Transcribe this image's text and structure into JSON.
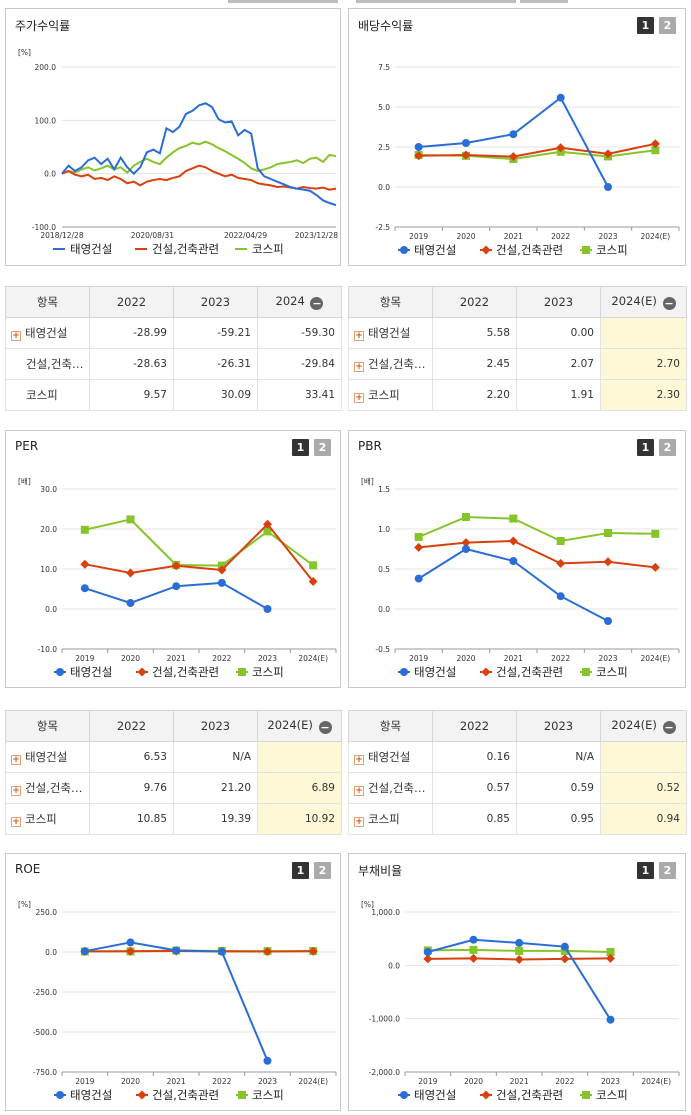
{
  "colors": {
    "series1": "#2b6dd6",
    "series2": "#d8400e",
    "series3": "#86c42b"
  },
  "stock": {
    "title": "주가수익률",
    "unit": "[%]",
    "y_ticks": [
      "200.0",
      "100.0",
      "0.0",
      "-100.0"
    ],
    "x_ticks": [
      "2018/12/28",
      "2020/08/31",
      "2022/04/29",
      "2023/12/28"
    ],
    "legend": [
      "태영건설",
      "건설,건축관련",
      "코스피"
    ],
    "chart_data": {
      "type": "line",
      "ylim": [
        -100,
        200
      ],
      "series": [
        {
          "name": "태영건설",
          "values": [
            0,
            15,
            5,
            12,
            25,
            30,
            18,
            28,
            8,
            30,
            12,
            0,
            12,
            40,
            45,
            38,
            85,
            78,
            88,
            112,
            118,
            128,
            132,
            125,
            102,
            96,
            98,
            72,
            82,
            75,
            10,
            -5,
            -10,
            -15,
            -20,
            -25,
            -28,
            -30,
            -32,
            -40,
            -50,
            -55,
            -59
          ]
        },
        {
          "name": "건설,건축관련",
          "values": [
            0,
            5,
            -2,
            -5,
            -2,
            -10,
            -8,
            -12,
            -5,
            -10,
            -18,
            -15,
            -22,
            -15,
            -12,
            -10,
            -12,
            -8,
            -5,
            5,
            10,
            15,
            12,
            5,
            0,
            -5,
            -2,
            -8,
            -10,
            -12,
            -18,
            -20,
            -22,
            -25,
            -24,
            -26,
            -28,
            -25,
            -27,
            -28,
            -26,
            -30,
            -28
          ]
        },
        {
          "name": "코스피",
          "values": [
            0,
            5,
            2,
            8,
            12,
            6,
            10,
            15,
            8,
            12,
            2,
            15,
            22,
            28,
            22,
            18,
            30,
            40,
            48,
            52,
            58,
            55,
            60,
            55,
            48,
            42,
            35,
            28,
            20,
            10,
            5,
            8,
            12,
            18,
            20,
            22,
            25,
            20,
            28,
            30,
            22,
            35,
            33
          ]
        }
      ]
    }
  },
  "dividend": {
    "title": "배당수익률",
    "btn1": "1",
    "btn2": "2",
    "y_ticks": [
      "7.5",
      "5.0",
      "2.5",
      "0.0",
      "-2.5"
    ],
    "x_ticks": [
      "2019",
      "2020",
      "2021",
      "2022",
      "2023",
      "2024(E)"
    ],
    "legend": [
      "태영건설",
      "건설,건축관련",
      "코스피"
    ],
    "chart_data": {
      "type": "line",
      "categories": [
        "2019",
        "2020",
        "2021",
        "2022",
        "2023",
        "2024(E)"
      ],
      "ylim": [
        -2.5,
        7.5
      ],
      "series": [
        {
          "name": "태영건설",
          "values": [
            2.5,
            2.75,
            3.3,
            5.58,
            0.0,
            null
          ]
        },
        {
          "name": "건설,건축관련",
          "values": [
            1.95,
            2.0,
            1.9,
            2.45,
            2.07,
            2.7
          ]
        },
        {
          "name": "코스피",
          "values": [
            2.0,
            1.95,
            1.75,
            2.2,
            1.91,
            2.3
          ]
        }
      ]
    }
  },
  "per": {
    "title": "PER",
    "btn1": "1",
    "btn2": "2",
    "unit": "[배]",
    "y_ticks": [
      "30.0",
      "20.0",
      "10.0",
      "0.0",
      "-10.0"
    ],
    "x_ticks": [
      "2019",
      "2020",
      "2021",
      "2022",
      "2023",
      "2024(E)"
    ],
    "legend": [
      "태영건설",
      "건설,건축관련",
      "코스피"
    ],
    "chart_data": {
      "type": "line",
      "categories": [
        "2019",
        "2020",
        "2021",
        "2022",
        "2023",
        "2024(E)"
      ],
      "ylim": [
        -10,
        30
      ],
      "series": [
        {
          "name": "태영건설",
          "values": [
            5.2,
            1.5,
            5.7,
            6.53,
            0.0,
            null
          ]
        },
        {
          "name": "건설,건축관련",
          "values": [
            11.2,
            9.0,
            10.8,
            9.76,
            21.2,
            6.89
          ]
        },
        {
          "name": "코스피",
          "values": [
            19.8,
            22.4,
            11.0,
            10.85,
            19.39,
            10.92
          ]
        }
      ]
    }
  },
  "pbr": {
    "title": "PBR",
    "btn1": "1",
    "btn2": "2",
    "unit": "[배]",
    "y_ticks": [
      "1.5",
      "1.0",
      "0.5",
      "0.0",
      "-0.5"
    ],
    "x_ticks": [
      "2019",
      "2020",
      "2021",
      "2022",
      "2023",
      "2024(E)"
    ],
    "legend": [
      "태영건설",
      "건설,건축관련",
      "코스피"
    ],
    "chart_data": {
      "type": "line",
      "categories": [
        "2019",
        "2020",
        "2021",
        "2022",
        "2023",
        "2024(E)"
      ],
      "ylim": [
        -0.5,
        1.5
      ],
      "series": [
        {
          "name": "태영건설",
          "values": [
            0.38,
            0.75,
            0.6,
            0.16,
            -0.15,
            null
          ]
        },
        {
          "name": "건설,건축관련",
          "values": [
            0.77,
            0.83,
            0.85,
            0.57,
            0.59,
            0.52
          ]
        },
        {
          "name": "코스피",
          "values": [
            0.9,
            1.15,
            1.13,
            0.85,
            0.95,
            0.94
          ]
        }
      ]
    }
  },
  "roe": {
    "title": "ROE",
    "btn1": "1",
    "btn2": "2",
    "unit": "[%]",
    "y_ticks": [
      "250.0",
      "0.0",
      "-250.0",
      "-500.0",
      "-750.0"
    ],
    "x_ticks": [
      "2019",
      "2020",
      "2021",
      "2022",
      "2023",
      "2024(E)"
    ],
    "legend": [
      "태영건설",
      "건설,건축관련",
      "코스피"
    ],
    "chart_data": {
      "type": "line",
      "categories": [
        "2019",
        "2020",
        "2021",
        "2022",
        "2023",
        "2024(E)"
      ],
      "ylim": [
        -750,
        250
      ],
      "series": [
        {
          "name": "태영건설",
          "values": [
            5,
            60,
            10,
            2,
            -680,
            null
          ]
        },
        {
          "name": "건설,건축관련",
          "values": [
            4,
            5,
            6,
            4,
            3,
            5
          ]
        },
        {
          "name": "코스피",
          "values": [
            3,
            4,
            9,
            6,
            5,
            6
          ]
        }
      ]
    }
  },
  "debt": {
    "title": "부채비율",
    "btn1": "1",
    "btn2": "2",
    "unit": "[%]",
    "y_ticks": [
      "1,000.0",
      "0.0",
      "-1,000.0",
      "-2,000.0"
    ],
    "x_ticks": [
      "2019",
      "2020",
      "2021",
      "2022",
      "2023",
      "2024(E)"
    ],
    "legend": [
      "태영건설",
      "건설,건축관련",
      "코스피"
    ],
    "chart_data": {
      "type": "line",
      "categories": [
        "2019",
        "2020",
        "2021",
        "2022",
        "2023",
        "2024(E)"
      ],
      "ylim": [
        -2000,
        1000
      ],
      "series": [
        {
          "name": "태영건설",
          "values": [
            250,
            480,
            420,
            350,
            -1020,
            null
          ]
        },
        {
          "name": "건설,건축관련",
          "values": [
            120,
            130,
            110,
            120,
            130,
            null
          ]
        },
        {
          "name": "코스피",
          "values": [
            280,
            290,
            270,
            270,
            250,
            null
          ]
        }
      ]
    }
  },
  "tables": {
    "stock": {
      "headers": [
        "항목",
        "2022",
        "2023",
        "2024"
      ],
      "rows": [
        {
          "name": "태영건설",
          "vals": [
            "-28.99",
            "-59.21",
            "-59.30"
          ]
        },
        {
          "name": "건설,건축…",
          "vals": [
            "-28.63",
            "-26.31",
            "-29.84"
          ]
        },
        {
          "name": "코스피",
          "vals": [
            "9.57",
            "30.09",
            "33.41"
          ]
        }
      ]
    },
    "dividend": {
      "headers": [
        "항목",
        "2022",
        "2023",
        "2024(E)"
      ],
      "rows": [
        {
          "name": "태영건설",
          "vals": [
            "5.58",
            "0.00",
            ""
          ]
        },
        {
          "name": "건설,건축…",
          "vals": [
            "2.45",
            "2.07",
            "2.70"
          ]
        },
        {
          "name": "코스피",
          "vals": [
            "2.20",
            "1.91",
            "2.30"
          ]
        }
      ]
    },
    "per": {
      "headers": [
        "항목",
        "2022",
        "2023",
        "2024(E)"
      ],
      "rows": [
        {
          "name": "태영건설",
          "vals": [
            "6.53",
            "N/A",
            ""
          ]
        },
        {
          "name": "건설,건축…",
          "vals": [
            "9.76",
            "21.20",
            "6.89"
          ]
        },
        {
          "name": "코스피",
          "vals": [
            "10.85",
            "19.39",
            "10.92"
          ]
        }
      ]
    },
    "pbr": {
      "headers": [
        "항목",
        "2022",
        "2023",
        "2024(E)"
      ],
      "rows": [
        {
          "name": "태영건설",
          "vals": [
            "0.16",
            "N/A",
            ""
          ]
        },
        {
          "name": "건설,건축…",
          "vals": [
            "0.57",
            "0.59",
            "0.52"
          ]
        },
        {
          "name": "코스피",
          "vals": [
            "0.85",
            "0.95",
            "0.94"
          ]
        }
      ]
    }
  }
}
